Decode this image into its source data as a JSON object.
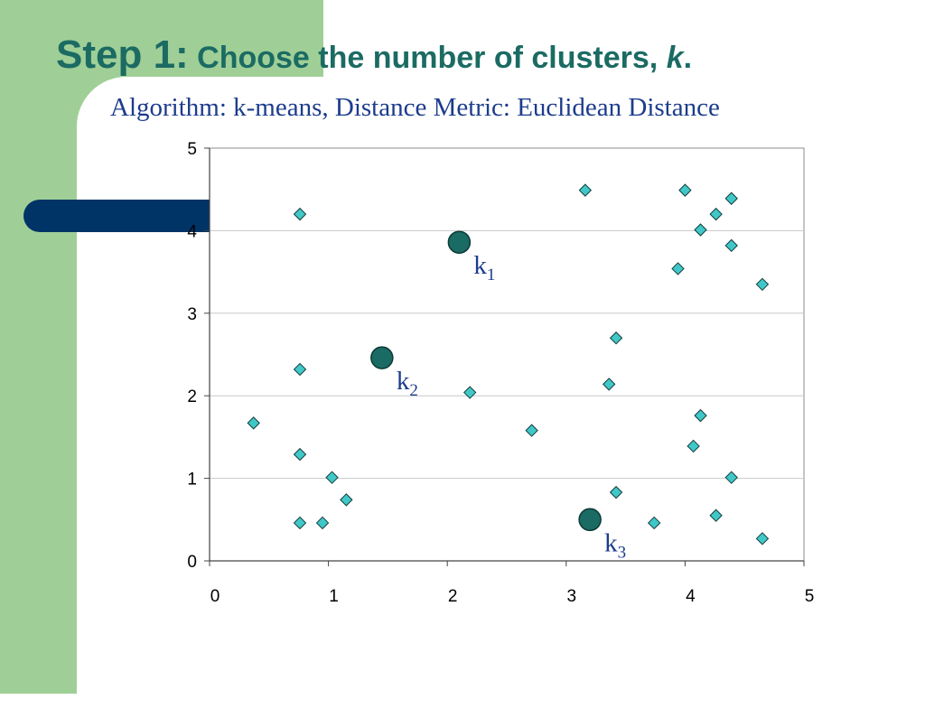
{
  "slide": {
    "title_step": "Step 1:",
    "title_rest": " Choose the number of clusters, ",
    "title_k": "k",
    "title_end": ".",
    "subtitle": "Algorithm: k-means, Distance Metric: Euclidean Distance"
  },
  "colors": {
    "sidebar_green": "#9fcf97",
    "accent_navy": "#003366",
    "title_teal": "#1b6b63",
    "subtitle_blue": "#1c3c8c",
    "point_fill": "#40c8c8",
    "centroid_fill": "#1a6b63"
  },
  "chart_data": {
    "type": "scatter",
    "xlim": [
      0,
      5
    ],
    "ylim": [
      0,
      5
    ],
    "xticks": [
      "0",
      "1",
      "2",
      "3",
      "4",
      "5"
    ],
    "yticks": [
      "0",
      "1",
      "2",
      "3",
      "4",
      "5"
    ],
    "grid": "horizontal",
    "points": [
      {
        "x": 0.37,
        "y": 1.67
      },
      {
        "x": 0.76,
        "y": 4.2
      },
      {
        "x": 0.76,
        "y": 2.32
      },
      {
        "x": 0.76,
        "y": 1.29
      },
      {
        "x": 0.76,
        "y": 0.46
      },
      {
        "x": 0.95,
        "y": 0.46
      },
      {
        "x": 1.03,
        "y": 1.01
      },
      {
        "x": 1.15,
        "y": 0.74
      },
      {
        "x": 2.19,
        "y": 2.04
      },
      {
        "x": 2.71,
        "y": 1.58
      },
      {
        "x": 3.16,
        "y": 4.49
      },
      {
        "x": 3.36,
        "y": 2.14
      },
      {
        "x": 3.42,
        "y": 2.7
      },
      {
        "x": 3.42,
        "y": 0.83
      },
      {
        "x": 3.74,
        "y": 0.46
      },
      {
        "x": 3.94,
        "y": 3.54
      },
      {
        "x": 4.0,
        "y": 4.49
      },
      {
        "x": 4.07,
        "y": 1.39
      },
      {
        "x": 4.13,
        "y": 4.01
      },
      {
        "x": 4.13,
        "y": 1.76
      },
      {
        "x": 4.26,
        "y": 4.2
      },
      {
        "x": 4.26,
        "y": 0.55
      },
      {
        "x": 4.39,
        "y": 4.39
      },
      {
        "x": 4.39,
        "y": 3.82
      },
      {
        "x": 4.39,
        "y": 1.01
      },
      {
        "x": 4.65,
        "y": 3.35
      },
      {
        "x": 4.65,
        "y": 0.27
      }
    ],
    "centroids": [
      {
        "label": "k",
        "sub": "1",
        "x": 2.1,
        "y": 3.86
      },
      {
        "label": "k",
        "sub": "2",
        "x": 1.45,
        "y": 2.46
      },
      {
        "label": "k",
        "sub": "3",
        "x": 3.2,
        "y": 0.5
      }
    ]
  }
}
